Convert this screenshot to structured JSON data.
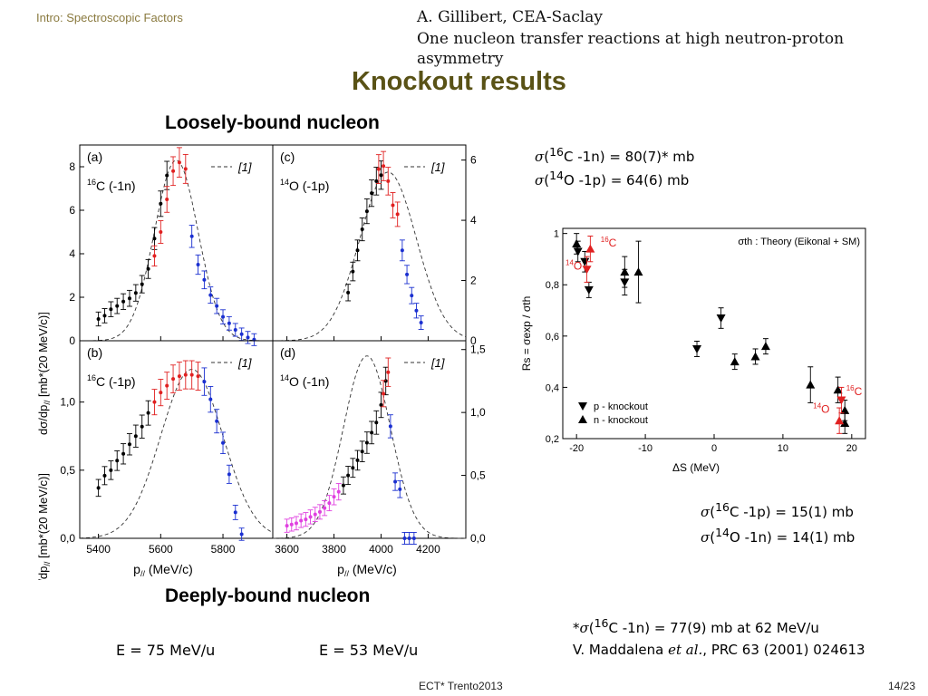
{
  "header": {
    "section": "Intro: Spectroscopic Factors",
    "author": "A. Gillibert, CEA-Saclay",
    "talk_title": "One nucleon transfer reactions at high neutron-proton asymmetry"
  },
  "slide_title": "Knockout results",
  "left_figure": {
    "top_heading": "Loosely-bound nucleon",
    "bottom_heading": "Deeply-bound nucleon",
    "ylabel": "dσ/dp// [mb*(20 MeV/c)]",
    "reference_label": "[1]",
    "energy_left": "E = 75 MeV/u",
    "energy_right": "E = 53 MeV/u"
  },
  "equations": {
    "top1_nuc": "16",
    "top1_rest": "C -1n) = 80(7)* mb",
    "top2_nuc": "14",
    "top2_rest": "O -1p) = 64(6) mb",
    "bot1_nuc": "16",
    "bot1_rest": "C -1p) = 15(1) mb",
    "bot2_nuc": "14",
    "bot2_rest": "O -1n) = 14(1) mb",
    "note_nuc": "16",
    "note_rest": "C -1n) = 77(9) mb at 62 MeV/u",
    "ref_authors": "V. Maddalena ",
    "ref_etal": "et al.",
    "ref_journal": ", PRC 63 (2001) 024613"
  },
  "footer": {
    "center": "ECT* Trento2013",
    "page": "14/23"
  },
  "colors": {
    "title": "#595216",
    "section": "#8a7a3f",
    "red": "#e02020",
    "blue": "#1a2fd0",
    "magenta": "#e040e0"
  },
  "chart_data": [
    {
      "id": "a",
      "type": "scatter",
      "label": "(a)",
      "reaction_nuc": "16",
      "reaction_text": "C (-1n)",
      "xlim": [
        5340,
        5960
      ],
      "ylim": [
        0,
        9
      ],
      "yticks": [
        0,
        2,
        4,
        6,
        8
      ],
      "tick_side": "left",
      "xticks": [
        5400,
        5600,
        5800
      ],
      "theory": {
        "peak_x": 5650,
        "peak_y": 8.3,
        "sigma": 70
      },
      "series": [
        {
          "name": "black",
          "color": "#000000",
          "x": [
            5400,
            5420,
            5440,
            5460,
            5480,
            5500,
            5520,
            5540,
            5560,
            5580,
            5600,
            5620
          ],
          "y": [
            1.0,
            1.15,
            1.45,
            1.6,
            1.8,
            1.95,
            2.2,
            2.6,
            3.3,
            4.7,
            6.3,
            7.6
          ]
        },
        {
          "name": "red",
          "color": "#e02020",
          "x": [
            5580,
            5600,
            5620,
            5640,
            5660,
            5680
          ],
          "y": [
            3.9,
            5.0,
            6.5,
            7.8,
            8.2,
            7.9
          ]
        },
        {
          "name": "blue",
          "color": "#1a2fd0",
          "x": [
            5700,
            5720,
            5740,
            5760,
            5780,
            5800,
            5820,
            5840,
            5860,
            5880,
            5900
          ],
          "y": [
            4.8,
            3.5,
            2.8,
            2.1,
            1.6,
            1.1,
            0.8,
            0.5,
            0.3,
            0.15,
            0.05
          ]
        }
      ]
    },
    {
      "id": "c",
      "type": "scatter",
      "label": "(c)",
      "reaction_nuc": "14",
      "reaction_text": "O (-1p)",
      "xlim": [
        3540,
        4360
      ],
      "ylim": [
        0,
        6.5
      ],
      "yticks": [
        0,
        2,
        4,
        6
      ],
      "tick_side": "right",
      "xticks": [
        3600,
        3800,
        4000,
        4200
      ],
      "theory": {
        "peak_x": 4030,
        "peak_y": 5.6,
        "sigma": 120
      },
      "series": [
        {
          "name": "black",
          "color": "#000000",
          "x": [
            3860,
            3880,
            3900,
            3920,
            3940,
            3960,
            3980,
            4000
          ],
          "y": [
            1.6,
            2.3,
            3.0,
            3.7,
            4.3,
            4.9,
            5.3,
            5.5
          ]
        },
        {
          "name": "red",
          "color": "#e02020",
          "x": [
            3990,
            4010,
            4030,
            4050,
            4070
          ],
          "y": [
            5.7,
            5.8,
            5.3,
            4.5,
            4.2
          ]
        },
        {
          "name": "blue",
          "color": "#1a2fd0",
          "x": [
            4090,
            4110,
            4130,
            4150,
            4170
          ],
          "y": [
            3.0,
            2.2,
            1.5,
            1.0,
            0.6
          ]
        }
      ]
    },
    {
      "id": "b",
      "type": "scatter",
      "label": "(b)",
      "reaction_nuc": "16",
      "reaction_text": "C (-1p)",
      "xlim": [
        5340,
        5960
      ],
      "ylim": [
        0,
        1.45
      ],
      "yticks": [
        0,
        0.5,
        1.0
      ],
      "ytick_labels": [
        "0,0",
        "0,5",
        "1,0"
      ],
      "tick_side": "left",
      "xticks": [
        5400,
        5600,
        5800
      ],
      "xtick_labels": [
        "5400",
        "5600",
        "5800"
      ],
      "theory": {
        "peak_x": 5700,
        "peak_y": 1.24,
        "sigma": 100
      },
      "series": [
        {
          "name": "black",
          "color": "#000000",
          "x": [
            5400,
            5420,
            5440,
            5460,
            5480,
            5500,
            5520,
            5540,
            5560
          ],
          "y": [
            0.37,
            0.46,
            0.5,
            0.57,
            0.62,
            0.69,
            0.75,
            0.82,
            0.92
          ]
        },
        {
          "name": "red",
          "color": "#e02020",
          "x": [
            5580,
            5600,
            5620,
            5640,
            5660,
            5680,
            5700,
            5720
          ],
          "y": [
            1.0,
            1.07,
            1.12,
            1.17,
            1.19,
            1.2,
            1.2,
            1.19
          ]
        },
        {
          "name": "blue",
          "color": "#1a2fd0",
          "x": [
            5740,
            5760,
            5780,
            5800,
            5820,
            5840,
            5860
          ],
          "y": [
            1.15,
            1.02,
            0.86,
            0.7,
            0.47,
            0.19,
            0.03
          ]
        }
      ]
    },
    {
      "id": "d",
      "type": "scatter",
      "label": "(d)",
      "reaction_nuc": "14",
      "reaction_text": "O (-1n)",
      "xlim": [
        3540,
        4360
      ],
      "ylim": [
        0,
        1.57
      ],
      "yticks": [
        0,
        0.5,
        1.0,
        1.5
      ],
      "ytick_labels": [
        "0,0",
        "0,5",
        "1,0",
        "1,5"
      ],
      "tick_side": "right",
      "xticks": [
        3600,
        3800,
        4000,
        4200
      ],
      "xtick_labels": [
        "3600",
        "3800",
        "4000",
        "4200"
      ],
      "theory": {
        "peak_x": 3940,
        "peak_y": 1.45,
        "sigma": 100
      },
      "series": [
        {
          "name": "magenta",
          "color": "#e040e0",
          "x": [
            3600,
            3620,
            3640,
            3660,
            3680,
            3700,
            3720,
            3740,
            3760,
            3780,
            3800,
            3820
          ],
          "y": [
            0.1,
            0.11,
            0.12,
            0.14,
            0.15,
            0.17,
            0.19,
            0.21,
            0.24,
            0.28,
            0.33,
            0.37
          ]
        },
        {
          "name": "black",
          "color": "#000000",
          "x": [
            3840,
            3860,
            3880,
            3900,
            3920,
            3940,
            3960,
            3980,
            4000,
            4020
          ],
          "y": [
            0.42,
            0.5,
            0.56,
            0.62,
            0.69,
            0.76,
            0.84,
            0.92,
            1.06,
            1.25
          ]
        },
        {
          "name": "red",
          "color": "#e02020",
          "x": [
            4010,
            4030
          ],
          "y": [
            1.15,
            1.32
          ]
        },
        {
          "name": "blue",
          "color": "#1a2fd0",
          "x": [
            4040,
            4060,
            4080,
            4100,
            4120,
            4140
          ],
          "y": [
            0.89,
            0.45,
            0.39,
            0.0,
            0.0,
            0.0
          ]
        }
      ]
    },
    {
      "id": "rs",
      "type": "scatter",
      "annotation": "σth : Theory (Eikonal + SM)",
      "xlabel": "ΔS (MeV)",
      "ylabel": "Rs = σexp / σth",
      "xlim": [
        -22,
        22
      ],
      "ylim": [
        0.2,
        1.02
      ],
      "xticks": [
        -20,
        -10,
        0,
        10,
        20
      ],
      "yticks": [
        0.2,
        0.4,
        0.6,
        0.8,
        1.0
      ],
      "ytick_labels": [
        "0,2",
        "0,4",
        "0,6",
        "0,8",
        "1"
      ],
      "legend": [
        "p - knockout",
        "n - knockout"
      ],
      "legend_position": "bottom-left",
      "series": [
        {
          "name": "p - knockout",
          "marker": "down-triangle",
          "x": [
            -19.8,
            -18.8,
            -18.2,
            -13.0,
            -2.5,
            1.0
          ],
          "y": [
            0.93,
            0.89,
            0.78,
            0.81,
            0.55,
            0.67
          ]
        },
        {
          "name": "n - knockout",
          "marker": "up-triangle",
          "x": [
            -20.0,
            -13.0,
            -11.0,
            3.0,
            6.0,
            7.5,
            14.0,
            18.0,
            19.0,
            19.0
          ],
          "y": [
            0.96,
            0.85,
            0.85,
            0.5,
            0.52,
            0.56,
            0.41,
            0.39,
            0.31,
            0.26
          ]
        },
        {
          "name": "14O",
          "marker": "red",
          "x": [
            -18.5,
            18.5
          ],
          "y": [
            0.86,
            0.35
          ]
        },
        {
          "name": "16C",
          "marker": "red",
          "x": [
            -18.0,
            18.2
          ],
          "y": [
            0.94,
            0.27
          ]
        }
      ],
      "point_labels": [
        {
          "nuc": "16",
          "el": "C"
        },
        {
          "nuc": "14",
          "el": "O"
        },
        {
          "nuc": "14",
          "el": "O"
        },
        {
          "nuc": "16",
          "el": "C"
        }
      ]
    }
  ]
}
